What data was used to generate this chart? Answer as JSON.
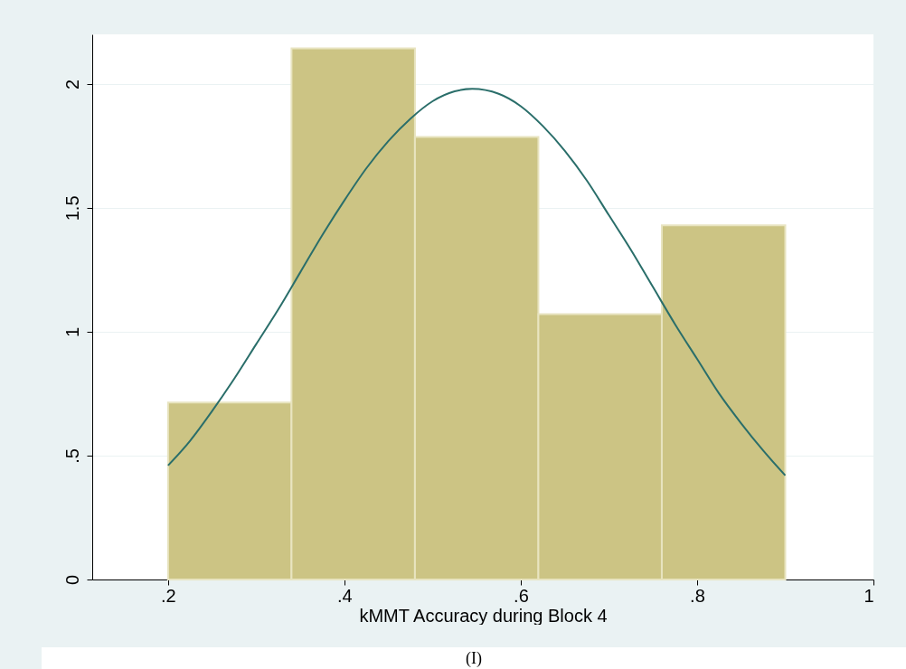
{
  "chart_data": {
    "type": "histogram",
    "xlabel": "kMMT Accuracy during Block 4",
    "bins": [
      0.2,
      0.34,
      0.48,
      0.62,
      0.76,
      0.9
    ],
    "series": [
      {
        "color": "#ccc484",
        "values": [
          0.714,
          2.143,
          1.786,
          1.071,
          1.429
        ]
      },
      {
        "type": "line",
        "color": "#2a6e6a",
        "x": [
          0.2,
          0.225,
          0.25,
          0.275,
          0.3,
          0.325,
          0.35,
          0.375,
          0.4,
          0.425,
          0.45,
          0.475,
          0.5,
          0.525,
          0.545,
          0.575,
          0.6,
          0.625,
          0.65,
          0.675,
          0.7,
          0.725,
          0.75,
          0.775,
          0.8,
          0.825,
          0.85,
          0.875,
          0.9
        ],
        "values": [
          0.46,
          0.56,
          0.68,
          0.81,
          0.95,
          1.09,
          1.24,
          1.39,
          1.53,
          1.66,
          1.77,
          1.86,
          1.93,
          1.97,
          1.98,
          1.96,
          1.91,
          1.83,
          1.73,
          1.61,
          1.47,
          1.33,
          1.18,
          1.03,
          0.89,
          0.75,
          0.63,
          0.52,
          0.42
        ]
      }
    ],
    "xlim": [
      0.114,
      1
    ],
    "ylim": [
      0,
      2.2
    ],
    "xticks": [
      {
        "value": 0.2,
        "label": ".2"
      },
      {
        "value": 0.4,
        "label": ".4"
      },
      {
        "value": 0.6,
        "label": ".6"
      },
      {
        "value": 0.8,
        "label": ".8"
      },
      1
    ],
    "yticks": [
      0,
      {
        "value": 0.5,
        "label": ".5"
      },
      1,
      {
        "value": 1.5,
        "label": "1.5"
      },
      2
    ],
    "grid": "y",
    "annotations": [
      "(I)"
    ]
  }
}
